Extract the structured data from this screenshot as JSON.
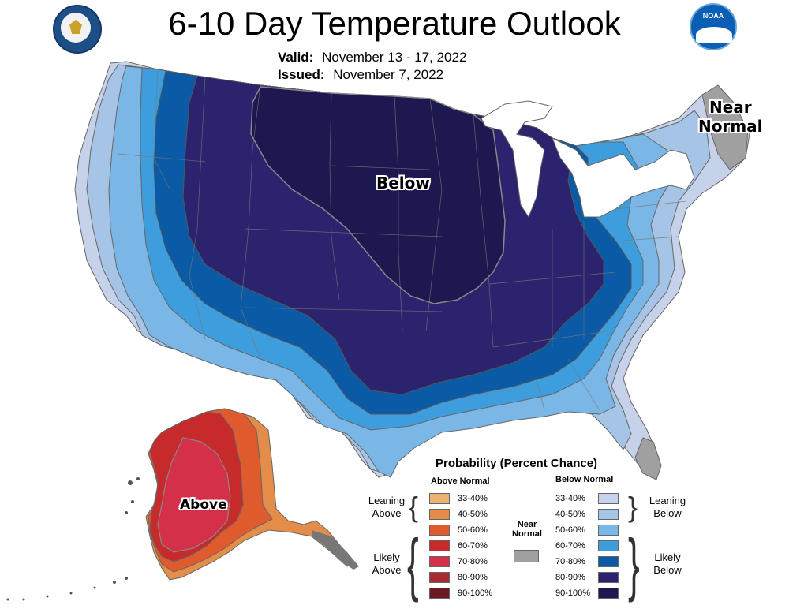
{
  "title": "6-10 Day Temperature Outlook",
  "valid_label": "Valid:",
  "valid_value": "November 13 - 17, 2022",
  "issued_label": "Issued:",
  "issued_value": "November 7, 2022",
  "map_labels": {
    "below": "Below",
    "above": "Above",
    "near_normal_line1": "Near",
    "near_normal_line2": "Normal"
  },
  "logos": {
    "commerce_seal": "department-of-commerce-seal",
    "noaa": "NOAA"
  },
  "legend": {
    "title": "Probability (Percent Chance)",
    "above_header": "Above Normal",
    "below_header": "Below Normal",
    "near_line1": "Near",
    "near_line2": "Normal",
    "near_color": "#a0a0a0",
    "leaning_above_1": "Leaning",
    "leaning_above_2": "Above",
    "likely_above_1": "Likely",
    "likely_above_2": "Above",
    "leaning_below_1": "Leaning",
    "leaning_below_2": "Below",
    "likely_below_1": "Likely",
    "likely_below_2": "Below",
    "above": [
      {
        "range": "33-40%",
        "color": "#e9b46f"
      },
      {
        "range": "40-50%",
        "color": "#e48c49"
      },
      {
        "range": "50-60%",
        "color": "#df5a2c"
      },
      {
        "range": "60-70%",
        "color": "#c72a2a"
      },
      {
        "range": "70-80%",
        "color": "#d4304a"
      },
      {
        "range": "80-90%",
        "color": "#a82a35"
      },
      {
        "range": "90-100%",
        "color": "#6a1a22"
      }
    ],
    "below": [
      {
        "range": "33-40%",
        "color": "#c6d2ea"
      },
      {
        "range": "40-50%",
        "color": "#a6c4e6"
      },
      {
        "range": "50-60%",
        "color": "#7ab6e6"
      },
      {
        "range": "60-70%",
        "color": "#3e9ddc"
      },
      {
        "range": "70-80%",
        "color": "#0b5aa6"
      },
      {
        "range": "80-90%",
        "color": "#2c236e"
      },
      {
        "range": "90-100%",
        "color": "#1e1850"
      }
    ]
  }
}
